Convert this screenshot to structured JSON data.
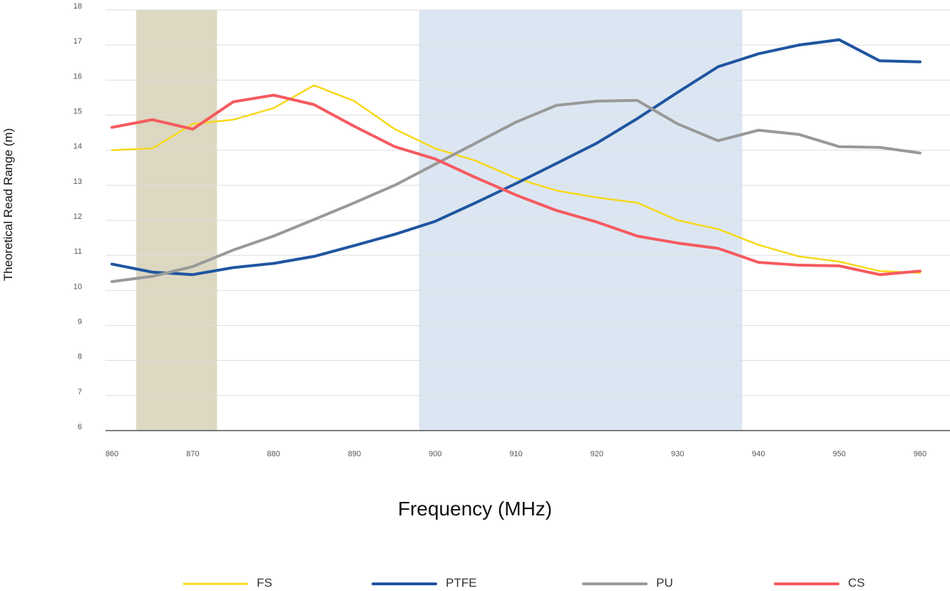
{
  "chart_data": {
    "type": "line",
    "xlabel": "Frequency (MHz)",
    "ylabel": "Theoretical Read Range (m)",
    "xlim": [
      857,
      962
    ],
    "ylim": [
      6,
      18
    ],
    "x_ticks": [
      860,
      870,
      880,
      890,
      900,
      910,
      920,
      930,
      940,
      950,
      960
    ],
    "y_ticks": [
      6,
      7,
      8,
      9,
      10,
      11,
      12,
      13,
      14,
      15,
      16,
      17,
      18
    ],
    "grid": "horizontal",
    "legend_position": "bottom",
    "bands": [
      {
        "from": 863,
        "to": 873,
        "color": "#dcd8c2"
      },
      {
        "from": 898,
        "to": 938,
        "color": "#dce6f2"
      }
    ],
    "x": [
      860,
      865,
      870,
      875,
      880,
      885,
      890,
      895,
      900,
      905,
      910,
      915,
      920,
      925,
      930,
      935,
      940,
      945,
      950,
      955,
      960
    ],
    "series": [
      {
        "name": "FS",
        "color": "#f7d81c",
        "width": 2.5,
        "values": [
          14.0,
          14.05,
          14.75,
          14.87,
          15.2,
          15.85,
          15.4,
          14.6,
          14.05,
          13.7,
          13.2,
          12.85,
          12.65,
          12.5,
          12.0,
          11.75,
          11.3,
          10.97,
          10.82,
          10.55,
          10.5
        ]
      },
      {
        "name": "PTFE",
        "color": "#1f55a0",
        "width": 4,
        "values": [
          10.75,
          10.52,
          10.45,
          10.65,
          10.77,
          10.97,
          11.28,
          11.6,
          11.97,
          12.5,
          13.05,
          13.62,
          14.2,
          14.9,
          15.65,
          16.38,
          16.75,
          17.0,
          17.15,
          16.55,
          16.52
        ]
      },
      {
        "name": "PU",
        "color": "#999999",
        "width": 4,
        "values": [
          10.25,
          10.4,
          10.68,
          11.15,
          11.55,
          12.02,
          12.5,
          13.0,
          13.6,
          14.2,
          14.8,
          15.28,
          15.4,
          15.42,
          14.75,
          14.27,
          14.57,
          14.45,
          14.1,
          14.08,
          13.92
        ]
      },
      {
        "name": "CS",
        "color": "#f55a5f",
        "width": 4,
        "values": [
          14.65,
          14.87,
          14.6,
          15.38,
          15.57,
          15.3,
          14.68,
          14.1,
          13.75,
          13.22,
          12.72,
          12.28,
          11.95,
          11.55,
          11.35,
          11.2,
          10.8,
          10.72,
          10.7,
          10.45,
          10.55
        ]
      }
    ]
  }
}
